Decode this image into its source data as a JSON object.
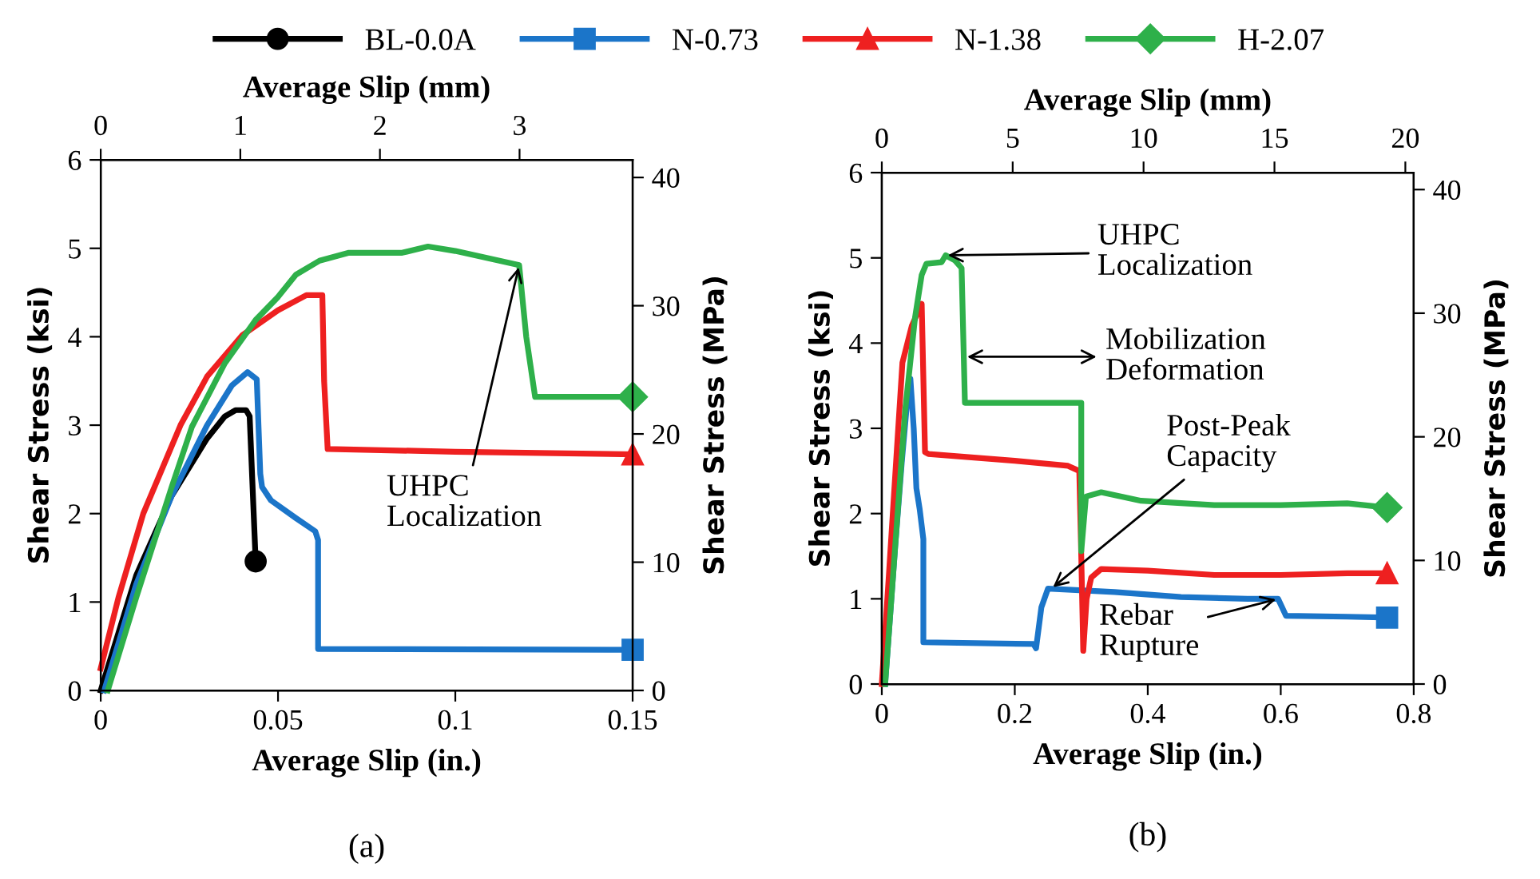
{
  "chart_data": [
    {
      "type": "line",
      "xlabel": "Average Slip (in.)",
      "ylabel": "Shear Stress (ksi)",
      "y2label": "Shear Stress (MPa)",
      "x2label": "Average Slip (mm)",
      "xlim": [
        0,
        0.15
      ],
      "xticks": [
        0,
        0.05,
        0.1,
        0.15
      ],
      "ylim": [
        0,
        6
      ],
      "yticks": [
        0,
        1,
        2,
        3,
        4,
        5,
        6
      ],
      "y2lim": [
        0,
        41.37
      ],
      "y2ticks": [
        0,
        10,
        20,
        30,
        40
      ],
      "x2lim": [
        0,
        3.81
      ],
      "x2ticks": [
        0,
        1,
        2,
        3
      ],
      "grid": false,
      "legend": "top",
      "line_style": "solid",
      "series": [
        {
          "name": "BL-0.0A",
          "color": "#000000",
          "x": [
            0,
            0.01,
            0.02,
            0.03,
            0.035,
            0.038,
            0.041,
            0.042,
            0.0437
          ],
          "values": [
            0,
            1.3,
            2.2,
            2.85,
            3.1,
            3.17,
            3.17,
            3.1,
            1.46
          ]
        },
        {
          "name": "N-0.73",
          "color": "#1b75c9",
          "x": [
            0.001,
            0.01,
            0.02,
            0.03,
            0.037,
            0.0414,
            0.044,
            0.045,
            0.0455,
            0.048,
            0.055,
            0.0605,
            0.0613,
            0.0613,
            0.15
          ],
          "values": [
            0,
            1.2,
            2.2,
            3.0,
            3.45,
            3.6,
            3.52,
            2.45,
            2.3,
            2.15,
            1.95,
            1.8,
            1.7,
            0.47,
            0.46
          ]
        },
        {
          "name": "N-1.38",
          "color": "#ee2020",
          "x": [
            0,
            0.005,
            0.012,
            0.0225,
            0.03,
            0.04,
            0.05,
            0.058,
            0.0625,
            0.063,
            0.064,
            0.1,
            0.15
          ],
          "values": [
            0.25,
            1.05,
            2.0,
            3.0,
            3.55,
            4.02,
            4.3,
            4.47,
            4.47,
            3.5,
            2.73,
            2.7,
            2.67
          ]
        },
        {
          "name": "H-2.07",
          "color": "#2eb04a",
          "x": [
            0.002,
            0.01,
            0.02,
            0.0257,
            0.035,
            0.0437,
            0.05,
            0.055,
            0.0617,
            0.07,
            0.085,
            0.0923,
            0.1,
            0.118,
            0.12,
            0.1225,
            0.15
          ],
          "values": [
            0,
            1.05,
            2.3,
            2.98,
            3.7,
            4.19,
            4.45,
            4.7,
            4.86,
            4.95,
            4.95,
            5.02,
            4.97,
            4.81,
            4.0,
            3.32,
            3.32
          ]
        }
      ],
      "annotations": [
        {
          "text": "UHPC\nLocalization",
          "x": 0.118,
          "y": 4.81
        },
        "(a)"
      ]
    },
    {
      "type": "line",
      "xlabel": "Average Slip (in.)",
      "ylabel": "Shear Stress (ksi)",
      "y2label": "Shear Stress (MPa)",
      "x2label": "Average Slip (mm)",
      "xlim": [
        0,
        0.8
      ],
      "xticks": [
        0,
        0.2,
        0.4,
        0.6,
        0.8
      ],
      "ylim": [
        0,
        6
      ],
      "yticks": [
        0,
        1,
        2,
        3,
        4,
        5,
        6
      ],
      "y2lim": [
        0,
        41.37
      ],
      "y2ticks": [
        0,
        10,
        20,
        30,
        40
      ],
      "x2lim": [
        0,
        20.32
      ],
      "x2ticks": [
        0,
        5,
        10,
        15,
        20
      ],
      "grid": false,
      "line_style": "solid",
      "series": [
        {
          "color": "#1b75c9",
          "x": [
            0.005,
            0.02,
            0.03,
            0.038,
            0.043,
            0.048,
            0.052,
            0.057,
            0.0625,
            0.0625,
            0.228,
            0.232,
            0.24,
            0.25,
            0.35,
            0.45,
            0.55,
            0.596,
            0.608,
            0.7,
            0.76
          ],
          "values": [
            0,
            1.6,
            2.6,
            3.3,
            3.58,
            3.0,
            2.3,
            2.05,
            1.7,
            0.49,
            0.47,
            0.42,
            0.9,
            1.12,
            1.08,
            1.02,
            1.0,
            1.0,
            0.8,
            0.79,
            0.78
          ]
        },
        {
          "color": "#ee2020",
          "x": [
            0,
            0.01,
            0.031,
            0.045,
            0.06,
            0.065,
            0.07,
            0.2,
            0.28,
            0.297,
            0.3,
            0.303,
            0.308,
            0.315,
            0.33,
            0.4,
            0.5,
            0.6,
            0.7,
            0.76
          ],
          "values": [
            0,
            1.2,
            3.77,
            4.2,
            4.46,
            2.72,
            2.7,
            2.62,
            2.56,
            2.5,
            1.5,
            0.39,
            1.0,
            1.25,
            1.35,
            1.33,
            1.28,
            1.28,
            1.3,
            1.3
          ]
        },
        {
          "color": "#2eb04a",
          "x": [
            0.005,
            0.02,
            0.035,
            0.05,
            0.06,
            0.067,
            0.09,
            0.096,
            0.11,
            0.12,
            0.125,
            0.3,
            0.3,
            0.307,
            0.33,
            0.39,
            0.5,
            0.6,
            0.7,
            0.76
          ],
          "values": [
            0,
            1.6,
            3.2,
            4.3,
            4.8,
            4.93,
            4.95,
            5.03,
            4.97,
            4.88,
            3.3,
            3.3,
            1.56,
            2.2,
            2.25,
            2.15,
            2.1,
            2.1,
            2.12,
            2.07
          ]
        }
      ],
      "annotations": [
        {
          "text": "UHPC\nLocalization",
          "x": 0.096,
          "y": 5.03
        },
        {
          "text": "Mobilization\nDeformation",
          "x": 0.125,
          "y": 3.84
        },
        {
          "text": "Post-Peak\nCapacity",
          "x": 0.255,
          "y": 1.12
        },
        {
          "text": "Rebar\nRupture",
          "x": 0.596,
          "y": 1.0
        },
        "(b)"
      ]
    }
  ]
}
